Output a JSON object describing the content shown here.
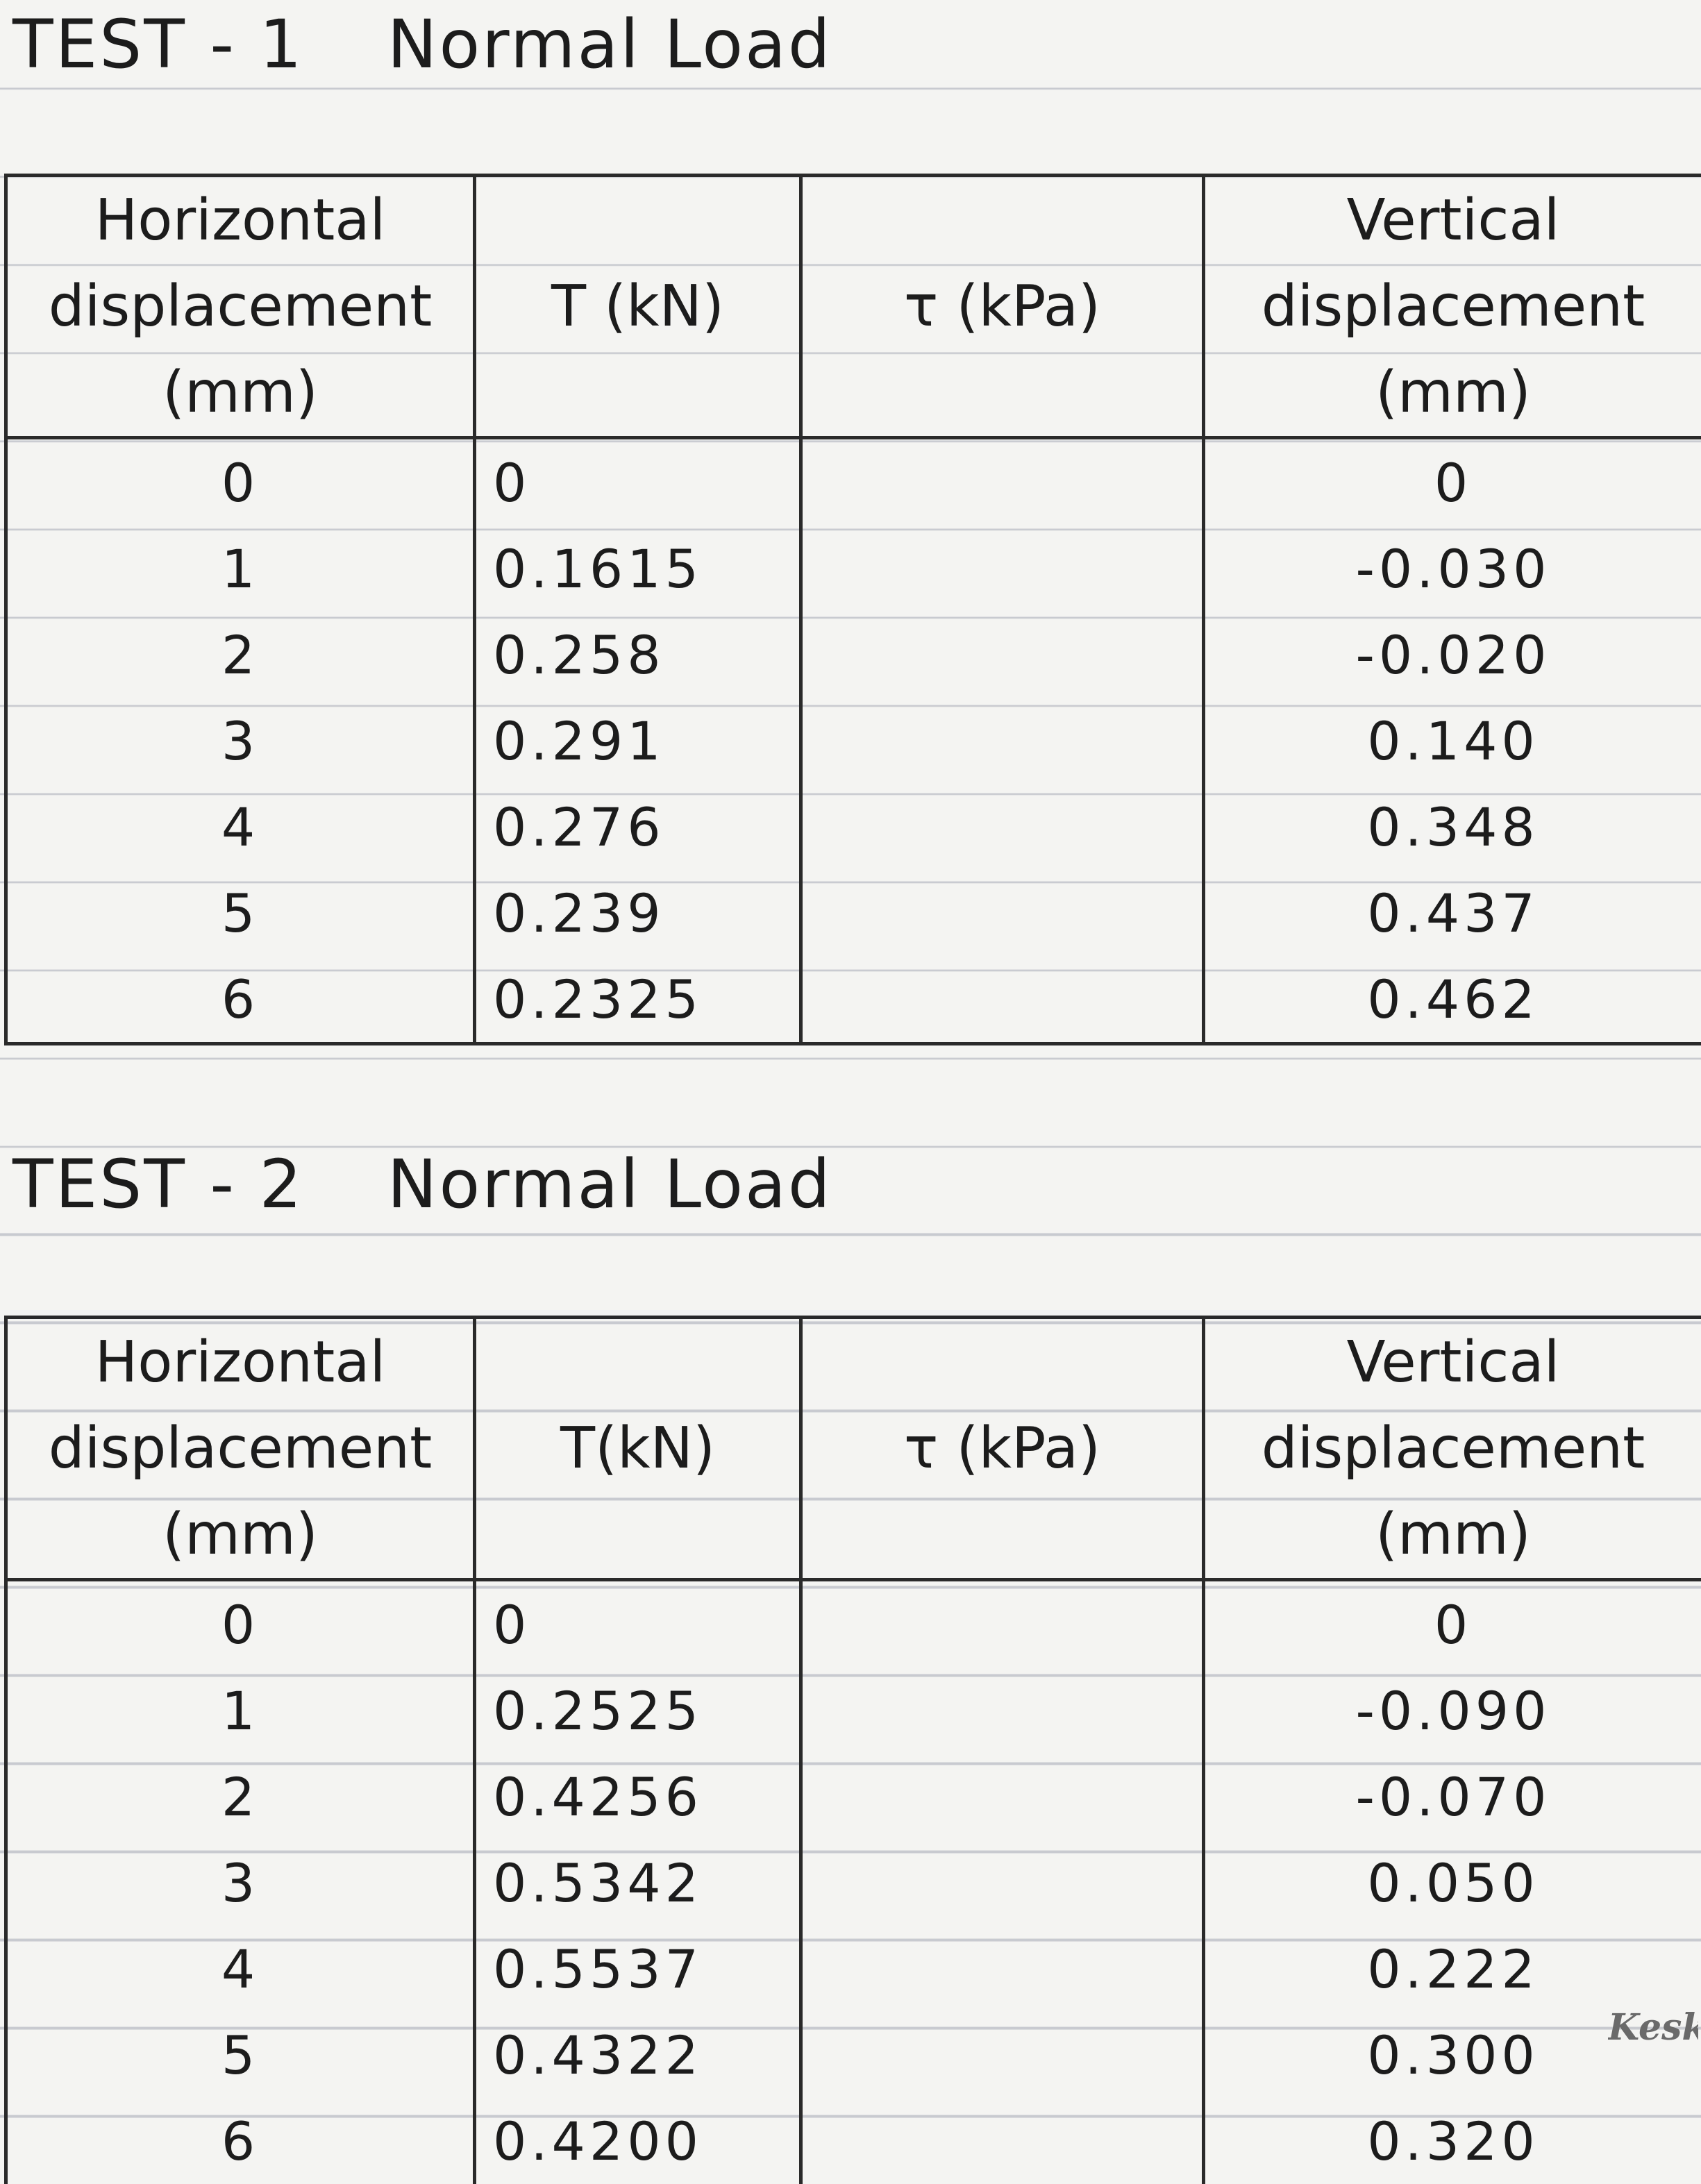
{
  "tests": [
    {
      "test_label": "TEST - 1",
      "load_label": "Normal Load",
      "headers": {
        "horizontal": "Horizontal\ndisplacement\n(mm)",
        "t": "T (kN)",
        "tau": "τ (kPa)",
        "vertical": "Vertical\ndisplacement\n(mm)"
      },
      "rows": [
        {
          "h": "0",
          "t": "0",
          "tau": "",
          "v": "0"
        },
        {
          "h": "1",
          "t": "0.1615",
          "tau": "",
          "v": "-0.030"
        },
        {
          "h": "2",
          "t": "0.258",
          "tau": "",
          "v": "-0.020"
        },
        {
          "h": "3",
          "t": "0.291",
          "tau": "",
          "v": "0.140"
        },
        {
          "h": "4",
          "t": "0.276",
          "tau": "",
          "v": "0.348"
        },
        {
          "h": "5",
          "t": "0.239",
          "tau": "",
          "v": "0.437"
        },
        {
          "h": "6",
          "t": "0.2325",
          "tau": "",
          "v": "0.462"
        }
      ]
    },
    {
      "test_label": "TEST - 2",
      "load_label": "Normal Load",
      "headers": {
        "horizontal": "Horizontal\ndisplacement\n(mm)",
        "t": "T(kN)",
        "tau": "τ (kPa)",
        "vertical": "Vertical\ndisplacement\n(mm)"
      },
      "rows": [
        {
          "h": "0",
          "t": "0",
          "tau": "",
          "v": "0"
        },
        {
          "h": "1",
          "t": "0.2525",
          "tau": "",
          "v": "-0.090"
        },
        {
          "h": "2",
          "t": "0.4256",
          "tau": "",
          "v": "-0.070"
        },
        {
          "h": "3",
          "t": "0.5342",
          "tau": "",
          "v": "0.050"
        },
        {
          "h": "4",
          "t": "0.5537",
          "tau": "",
          "v": "0.222"
        },
        {
          "h": "5",
          "t": "0.4322",
          "tau": "",
          "v": "0.300"
        },
        {
          "h": "6",
          "t": "0.4200",
          "tau": "",
          "v": "0.320"
        }
      ]
    }
  ],
  "watermark": "Keski"
}
